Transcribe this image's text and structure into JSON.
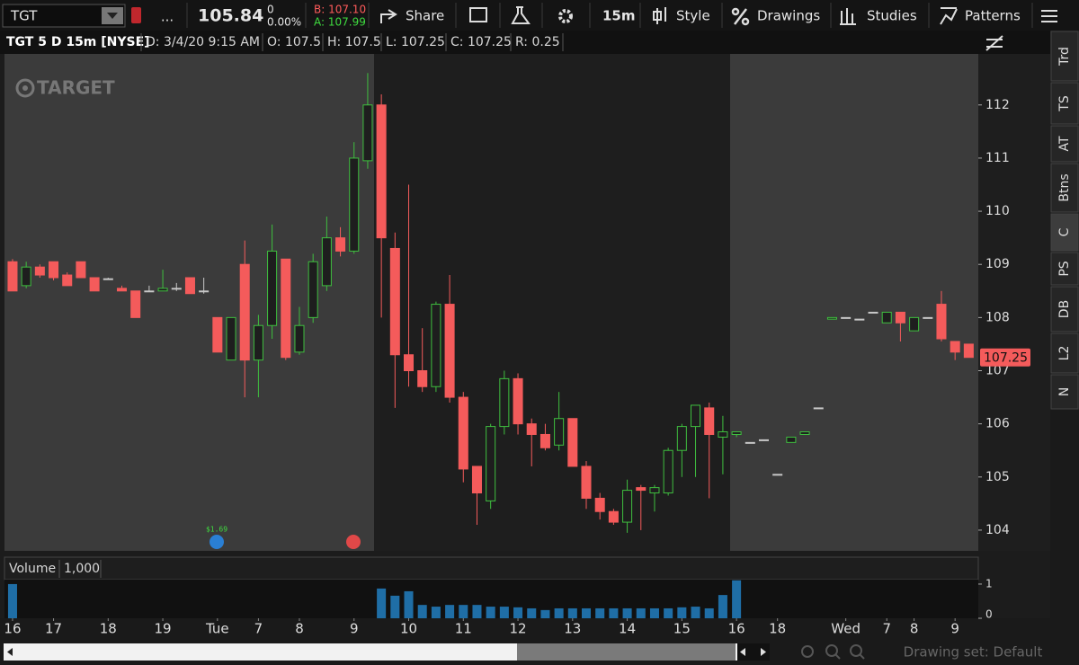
{
  "toolbar": {
    "symbol": "TGT",
    "more": "...",
    "last": "105.84",
    "change": "0",
    "change_pct": "0.00%",
    "bid": "B: 107.10",
    "ask": "A: 107.99",
    "share": "Share",
    "interval": "15m",
    "style": "Style",
    "drawings": "Drawings",
    "studies": "Studies",
    "patterns": "Patterns"
  },
  "header": {
    "title": "TGT 5 D 15m [NYSE]",
    "date": "D: 3/4/20 9:15 AM",
    "open": "O: 107.5",
    "high": "H: 107.5",
    "low": "L: 107.25",
    "close": "C: 107.25",
    "range": "R: 0.25"
  },
  "side_tabs": [
    "Trd",
    "TS",
    "AT",
    "Btns",
    "C",
    "PS",
    "DB",
    "L2",
    "N"
  ],
  "drawing_set": "Drawing set: Default",
  "chart_data": {
    "type": "candlestick",
    "watermark": "TARGET",
    "dividend_label": "$1.69",
    "last_price": 107.25,
    "up_color": "#3fbf3f",
    "down_color": "#f45b5b",
    "unchanged_color": "#c8c8c8",
    "open": [
      109.05,
      108.6,
      108.95,
      109.05,
      108.8,
      109.05,
      108.75,
      108.73,
      108.55,
      108.5,
      108.5,
      108.5,
      108.55,
      108.75,
      108.5,
      108.0,
      107.2,
      109.0,
      107.2,
      107.85,
      109.1,
      107.35,
      108.0,
      108.6,
      109.5,
      109.25,
      110.95,
      112.0,
      109.3,
      107.3,
      107.0,
      106.7,
      108.25,
      106.5,
      105.2,
      104.55,
      105.95,
      106.85,
      106.0,
      105.8,
      105.6,
      106.1,
      105.2,
      104.6,
      104.35,
      104.15,
      104.8,
      104.7,
      104.7,
      105.5,
      105.95,
      106.3,
      105.75,
      105.8,
      105.65,
      105.7,
      105.05,
      105.65,
      105.8,
      106.3,
      107.97,
      108.0,
      107.97,
      108.1,
      107.9,
      108.1,
      107.75,
      108.0,
      108.25,
      107.55,
      107.5
    ],
    "high": [
      109.1,
      109.05,
      109.0,
      109.05,
      108.85,
      109.05,
      108.75,
      108.75,
      108.6,
      108.5,
      108.6,
      108.9,
      108.65,
      108.75,
      108.75,
      108.0,
      108.0,
      109.45,
      108.05,
      109.75,
      109.1,
      108.2,
      109.2,
      109.9,
      109.7,
      111.3,
      112.6,
      112.2,
      109.6,
      110.5,
      107.8,
      108.3,
      108.8,
      106.6,
      105.2,
      106.0,
      107.0,
      106.95,
      106.1,
      106.0,
      106.6,
      106.1,
      105.3,
      104.7,
      104.4,
      104.95,
      104.85,
      104.85,
      105.55,
      106.0,
      106.35,
      106.4,
      106.15,
      105.85,
      105.65,
      105.7,
      105.05,
      105.75,
      105.85,
      106.3,
      108.0,
      108.0,
      107.97,
      108.1,
      108.1,
      108.1,
      108.0,
      108.0,
      108.5,
      107.55,
      107.5
    ],
    "low": [
      108.5,
      108.55,
      108.75,
      108.7,
      108.6,
      108.75,
      108.5,
      108.73,
      108.5,
      108.0,
      108.5,
      108.5,
      108.5,
      108.45,
      108.45,
      107.35,
      107.2,
      106.5,
      106.5,
      107.6,
      107.2,
      107.3,
      107.9,
      108.5,
      109.15,
      109.2,
      110.8,
      108.0,
      106.3,
      106.7,
      106.6,
      106.6,
      106.4,
      104.9,
      104.1,
      104.4,
      105.8,
      105.8,
      105.2,
      105.5,
      105.5,
      105.2,
      104.4,
      104.2,
      104.1,
      103.95,
      104.0,
      104.35,
      104.65,
      105.0,
      105.0,
      104.6,
      105.05,
      105.75,
      105.65,
      105.7,
      105.05,
      105.65,
      105.8,
      106.3,
      107.97,
      108.0,
      107.97,
      108.1,
      107.9,
      107.55,
      107.75,
      108.0,
      107.55,
      107.2,
      107.25
    ],
    "close": [
      108.5,
      108.95,
      108.8,
      108.75,
      108.6,
      108.75,
      108.5,
      108.73,
      108.5,
      108.0,
      108.5,
      108.55,
      108.55,
      108.45,
      108.5,
      107.35,
      108.0,
      107.2,
      107.85,
      109.25,
      107.25,
      107.85,
      109.05,
      109.5,
      109.25,
      111.0,
      112.0,
      109.5,
      107.3,
      107.0,
      106.7,
      108.25,
      106.5,
      105.15,
      104.7,
      105.95,
      106.85,
      106.0,
      105.8,
      105.55,
      106.1,
      105.2,
      104.6,
      104.35,
      104.15,
      104.75,
      104.75,
      104.8,
      105.5,
      105.95,
      106.35,
      105.8,
      105.85,
      105.85,
      105.65,
      105.7,
      105.05,
      105.75,
      105.85,
      106.3,
      108.0,
      108.0,
      107.97,
      108.1,
      108.1,
      107.9,
      108.0,
      108.0,
      107.6,
      107.35,
      107.25
    ],
    "xlim": [
      -0.59,
      70.7
    ],
    "xticks": [
      {
        "value": 0,
        "label": "16"
      },
      {
        "value": 3,
        "label": "17"
      },
      {
        "value": 7,
        "label": "18"
      },
      {
        "value": 11,
        "label": "19"
      },
      {
        "value": 15,
        "label": "Tue"
      },
      {
        "value": 18,
        "label": "7"
      },
      {
        "value": 21,
        "label": "8"
      },
      {
        "value": 25,
        "label": "9"
      },
      {
        "value": 29,
        "label": "10"
      },
      {
        "value": 33,
        "label": "11"
      },
      {
        "value": 37,
        "label": "12"
      },
      {
        "value": 41,
        "label": "13"
      },
      {
        "value": 45,
        "label": "14"
      },
      {
        "value": 49,
        "label": "15"
      },
      {
        "value": 53,
        "label": "16"
      },
      {
        "value": 56,
        "label": "18"
      },
      {
        "value": 61,
        "label": "Wed"
      },
      {
        "value": 64,
        "label": "7"
      },
      {
        "value": 66,
        "label": "8"
      },
      {
        "value": 69,
        "label": "9"
      }
    ],
    "ylim": [
      103.61,
      112.96
    ],
    "yticks": [
      104,
      105,
      106,
      107,
      108,
      109,
      110,
      111,
      112
    ],
    "volume": {
      "title": "Volume",
      "scale": "1,000",
      "color": "#1f6ea6",
      "ylim": [
        0,
        1.13
      ],
      "yticks": [
        0,
        1
      ],
      "values": [
        1.0,
        0,
        0,
        0,
        0,
        0,
        0,
        0,
        0,
        0,
        0,
        0,
        0,
        0,
        0,
        0,
        0,
        0,
        0,
        0,
        0,
        0,
        0,
        0,
        0,
        0,
        0,
        0.87,
        0.66,
        0.79,
        0.39,
        0.34,
        0.39,
        0.39,
        0.39,
        0.34,
        0.34,
        0.32,
        0.29,
        0.24,
        0.29,
        0.29,
        0.29,
        0.29,
        0.29,
        0.29,
        0.29,
        0.29,
        0.29,
        0.32,
        0.34,
        0.29,
        0.68,
        1.11,
        0,
        0,
        0,
        0,
        0,
        0,
        0,
        0,
        0,
        0,
        0,
        0,
        0,
        0,
        0,
        0,
        0
      ]
    }
  }
}
